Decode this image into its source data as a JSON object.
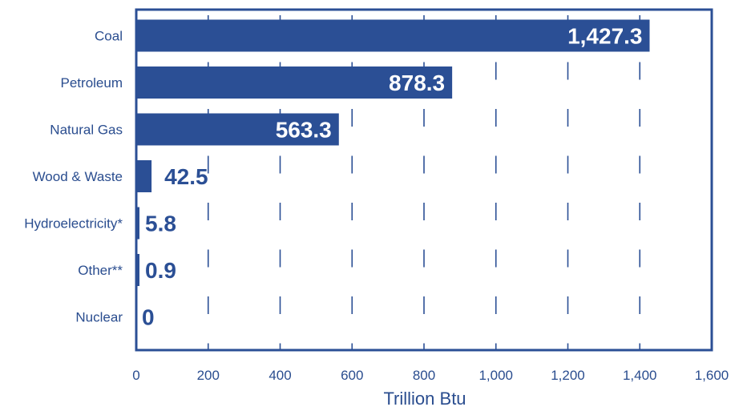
{
  "colors": {
    "bar": "#2b4f95",
    "frame": "#2b4f95",
    "grid": "#2b4f95",
    "text": "#2a4d8f",
    "label_inside": "#ffffff",
    "label_outside": "#2b4f95"
  },
  "chart_data": {
    "type": "bar",
    "orientation": "horizontal",
    "categories": [
      "Coal",
      "Petroleum",
      "Natural Gas",
      "Wood & Waste",
      "Hydroelectricity*",
      "Other**",
      "Nuclear"
    ],
    "values": [
      1427.3,
      878.3,
      563.3,
      42.5,
      5.8,
      0.9,
      0
    ],
    "value_labels": [
      "1,427.3",
      "878.3",
      "563.3",
      "42.5",
      "5.8",
      "0.9",
      "0"
    ],
    "title": "",
    "xlabel": "Trillion Btu",
    "ylabel": "",
    "xlim": [
      0,
      1600
    ],
    "xticks": [
      0,
      200,
      400,
      600,
      800,
      1000,
      1200,
      1400,
      1600
    ],
    "xtick_labels": [
      "0",
      "200",
      "400",
      "600",
      "800",
      "1,000",
      "1,200",
      "1,400",
      "1,600"
    ],
    "grid": "vertical dashed",
    "legend": "none"
  }
}
